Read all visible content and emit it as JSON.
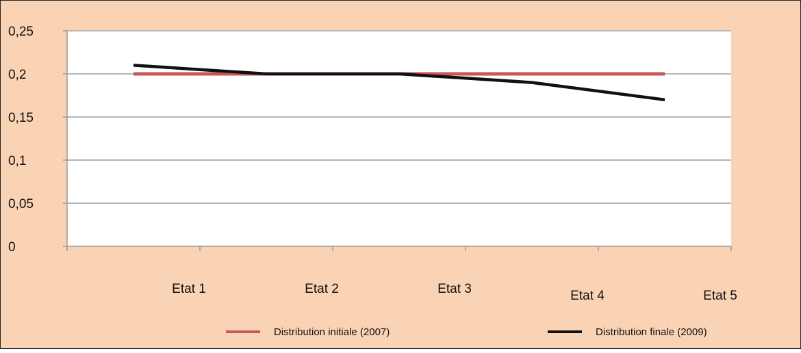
{
  "chart_data": {
    "type": "line",
    "categories": [
      "Etat 1",
      "Etat 2",
      "Etat 3",
      "Etat 4",
      "Etat 5"
    ],
    "series": [
      {
        "name": "Distribution initiale (2007)",
        "color": "#c9575a",
        "x": [
          0.5,
          1,
          2,
          3,
          4,
          4.5
        ],
        "values": [
          0.2,
          0.2,
          0.2,
          0.2,
          0.2,
          0.2
        ]
      },
      {
        "name": "Distribution finale (2009)",
        "color": "#111111",
        "x": [
          0.5,
          1,
          1.5,
          2,
          2.5,
          3,
          3.5,
          4,
          4.5
        ],
        "values": [
          0.21,
          0.205,
          0.2,
          0.2,
          0.2,
          0.195,
          0.19,
          0.18,
          0.17
        ]
      }
    ],
    "y_ticks": [
      "0",
      "0,05",
      "0,1",
      "0,15",
      "0,2",
      "0,25"
    ],
    "ylim": [
      0,
      0.25
    ],
    "grid": true,
    "legend_position": "bottom"
  }
}
